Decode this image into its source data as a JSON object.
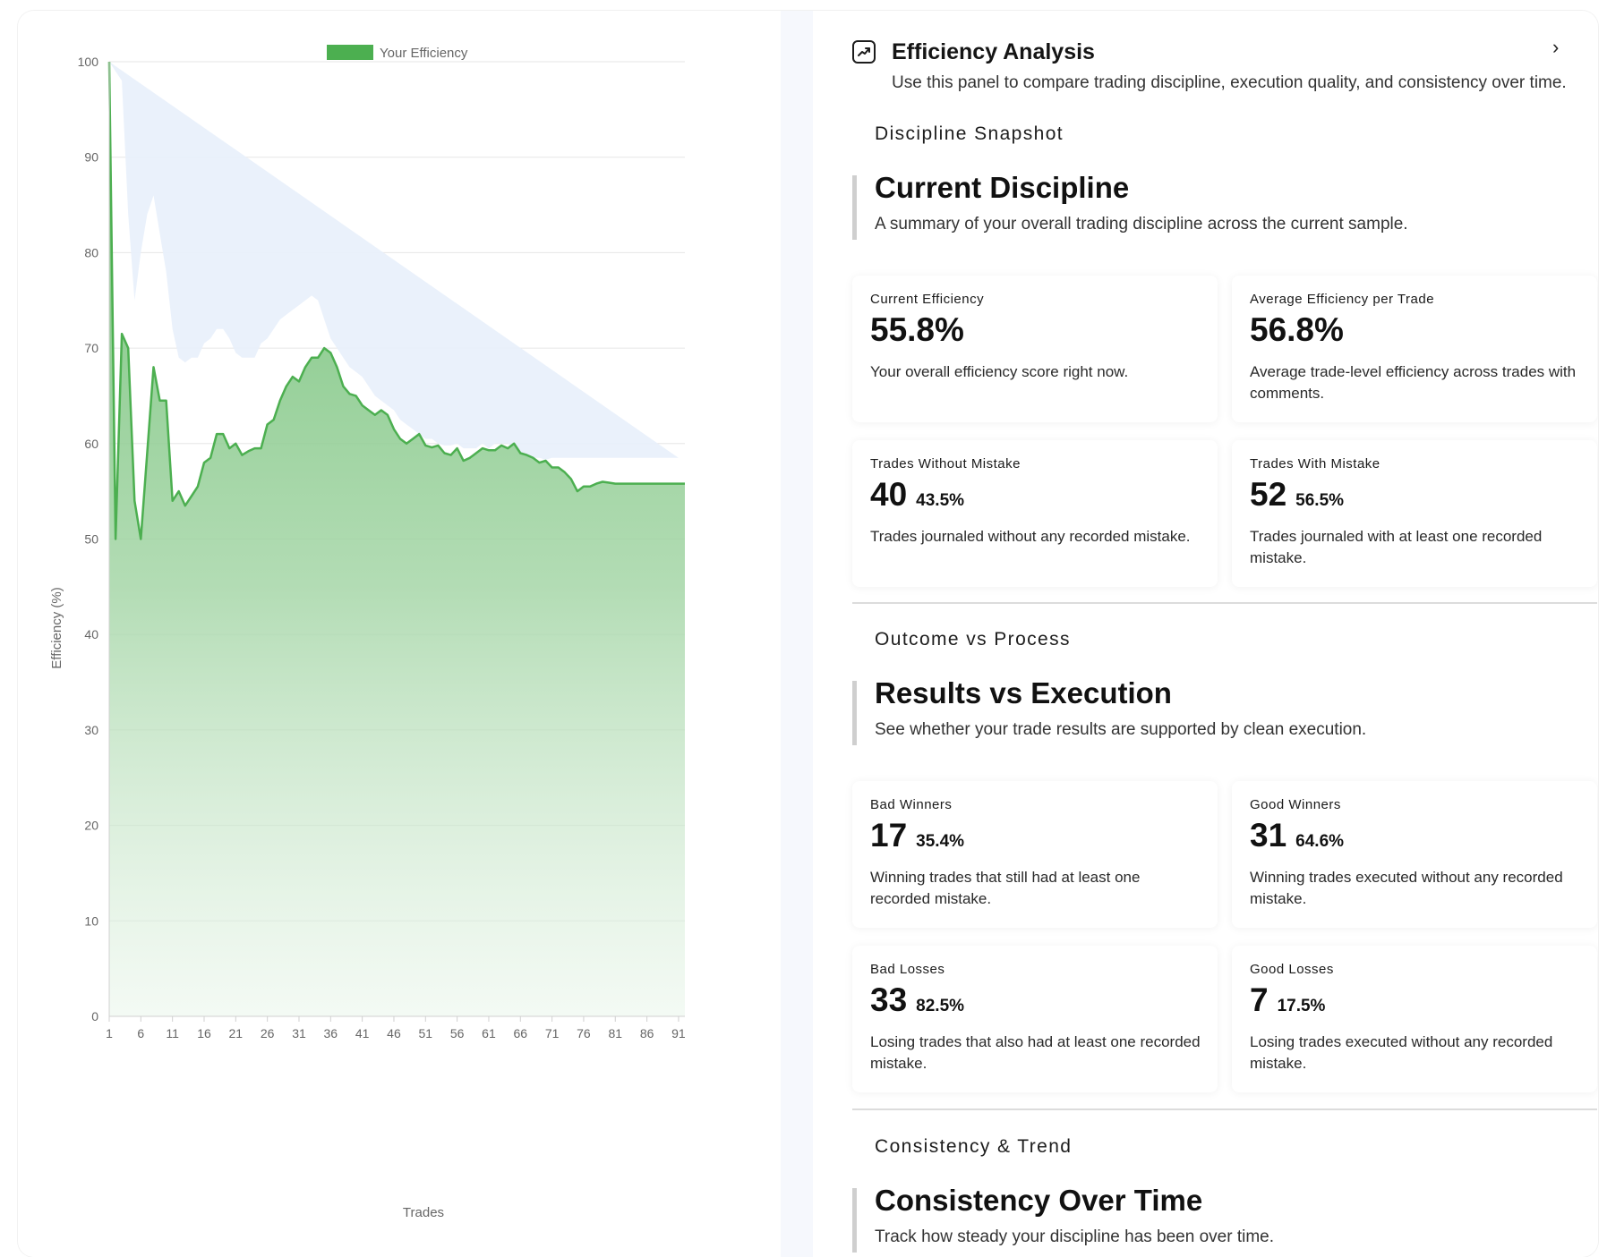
{
  "panel": {
    "header": {
      "title": "Efficiency Analysis",
      "subtitle": "Use this panel to compare trading discipline, execution quality, and consistency over time.",
      "icon": "trend-chart-icon",
      "collapse_icon": "chevron-right-icon",
      "collapse_glyph": "›"
    },
    "discipline": {
      "kicker": "Discipline Snapshot",
      "title": "Current Discipline",
      "description": "A summary of your overall trading discipline across the current sample.",
      "cards": [
        {
          "label": "Current Efficiency",
          "value": "55.8%",
          "pct": "",
          "description": "Your overall efficiency score right now."
        },
        {
          "label": "Average Efficiency per Trade",
          "value": "56.8%",
          "pct": "",
          "description": "Average trade-level efficiency across trades with comments."
        },
        {
          "label": "Trades Without Mistake",
          "value": "40",
          "pct": "43.5%",
          "description": "Trades journaled without any recorded mistake."
        },
        {
          "label": "Trades With Mistake",
          "value": "52",
          "pct": "56.5%",
          "description": "Trades journaled with at least one recorded mistake."
        }
      ]
    },
    "outcome": {
      "kicker": "Outcome vs Process",
      "title": "Results vs Execution",
      "description": "See whether your trade results are supported by clean execution.",
      "cards": [
        {
          "label": "Bad Winners",
          "value": "17",
          "pct": "35.4%",
          "description": "Winning trades that still had at least one recorded mistake."
        },
        {
          "label": "Good Winners",
          "value": "31",
          "pct": "64.6%",
          "description": "Winning trades executed without any recorded mistake."
        },
        {
          "label": "Bad Losses",
          "value": "33",
          "pct": "82.5%",
          "description": "Losing trades that also had at least one recorded mistake."
        },
        {
          "label": "Good Losses",
          "value": "7",
          "pct": "17.5%",
          "description": "Losing trades executed without any recorded mistake."
        }
      ]
    },
    "consistency": {
      "kicker": "Consistency & Trend",
      "title": "Consistency Over Time",
      "description": "Track how steady your discipline has been over time."
    }
  },
  "chart_data": {
    "type": "area",
    "title": "",
    "xlabel": "Trades",
    "ylabel": "Efficiency (%)",
    "ylim": [
      0,
      100
    ],
    "xlim": [
      1,
      92
    ],
    "y_ticks": [
      0,
      10,
      20,
      30,
      40,
      50,
      60,
      70,
      80,
      90,
      100
    ],
    "x_ticks": [
      1,
      6,
      11,
      16,
      21,
      26,
      31,
      36,
      41,
      46,
      51,
      56,
      61,
      66,
      71,
      76,
      81,
      86,
      91
    ],
    "grid": true,
    "legend": "top-center",
    "colors": {
      "line": "#4caf50",
      "band": "#e8effb",
      "legend_swatch": "#4caf50"
    },
    "series": [
      {
        "name": "Your Efficiency",
        "x": [
          1,
          2,
          3,
          4,
          5,
          6,
          7,
          8,
          9,
          10,
          11,
          12,
          13,
          14,
          15,
          16,
          17,
          18,
          19,
          20,
          21,
          22,
          23,
          24,
          25,
          26,
          27,
          28,
          29,
          30,
          31,
          32,
          33,
          34,
          35,
          36,
          37,
          38,
          39,
          40,
          41,
          42,
          43,
          44,
          45,
          46,
          47,
          48,
          49,
          50,
          51,
          52,
          53,
          54,
          55,
          56,
          57,
          58,
          59,
          60,
          61,
          62,
          63,
          64,
          65,
          66,
          67,
          68,
          69,
          70,
          71,
          72,
          73,
          74,
          75,
          76,
          77,
          78,
          79,
          80,
          81,
          82,
          83,
          84,
          85,
          86,
          87,
          88,
          89,
          90,
          91,
          92
        ],
        "values": [
          100,
          50,
          71.5,
          70,
          54,
          50,
          59,
          68,
          64.5,
          64.5,
          54,
          55,
          53.5,
          54.5,
          55.5,
          58,
          58.5,
          61,
          61,
          59.5,
          60,
          58.8,
          59.2,
          59.5,
          59.5,
          62,
          62.5,
          64.5,
          66,
          67,
          66.5,
          68,
          69,
          69,
          70,
          69.5,
          68,
          66,
          65.2,
          65,
          64,
          63.5,
          63,
          63.5,
          63,
          61.5,
          60.5,
          60,
          60.5,
          61,
          59.8,
          59.6,
          59.8,
          59,
          58.8,
          59.5,
          58.2,
          58.5,
          59,
          59.5,
          59.3,
          59.3,
          59.8,
          59.5,
          60,
          59,
          58.8,
          58.5,
          58,
          58.2,
          57.5,
          57.5,
          57,
          56.3,
          55,
          55.5,
          55.5,
          55.8,
          56,
          55.9,
          55.8,
          55.8,
          55.8,
          55.8,
          55.8,
          55.8,
          55.8,
          55.8,
          55.8,
          55.8,
          55.8,
          55.8
        ]
      }
    ],
    "band": {
      "upper": [
        100,
        99,
        98,
        84,
        75,
        80,
        84,
        86,
        82,
        78,
        72,
        69,
        68.5,
        69,
        69,
        70.5,
        71,
        72,
        72,
        71,
        69.5,
        69,
        69,
        69,
        70.5,
        71,
        72,
        73,
        73.5,
        74,
        74.5,
        75,
        75.5,
        75,
        73,
        71,
        70,
        69,
        68,
        67.5,
        67,
        66,
        65,
        64.5,
        64,
        63.5,
        62.5,
        62,
        61.5,
        61,
        60.5,
        60.5,
        60,
        59.8,
        59.8,
        60,
        59.5,
        59.5,
        59.5,
        60,
        59.5,
        60,
        60,
        60,
        59.5,
        59,
        58.5,
        58.5,
        58.5,
        58.3,
        58.5,
        58.5,
        58.5,
        58.5,
        58.5,
        58.5,
        58.5,
        58.5,
        58.5,
        58.5,
        58.5,
        58.5,
        58.5,
        58.5,
        58.5,
        58.5,
        58.5,
        58.5,
        58.5,
        58.5,
        58.5
      ],
      "lower": [
        0,
        37,
        40,
        27,
        26,
        40,
        49,
        47,
        40,
        38,
        39,
        41,
        43,
        44,
        46,
        47,
        48,
        49.5,
        50,
        50,
        51,
        52,
        53,
        54,
        55,
        56,
        57,
        58,
        58.5,
        59,
        59.5,
        60,
        60.5,
        61,
        61.5,
        62,
        62,
        61.5,
        61,
        60.5,
        60,
        59.5,
        59,
        58.5,
        58,
        57.5,
        57,
        56.5,
        56,
        56,
        55.5,
        55.5,
        55,
        55,
        54.8,
        54.5,
        54.5,
        54.3,
        54,
        54,
        54,
        54,
        54,
        54,
        54,
        54,
        54,
        54,
        54,
        54,
        54,
        54,
        54,
        54,
        54,
        54,
        54,
        54,
        54,
        54,
        54,
        54,
        54,
        54,
        54,
        54,
        54,
        54,
        54,
        54,
        54
      ]
    }
  }
}
